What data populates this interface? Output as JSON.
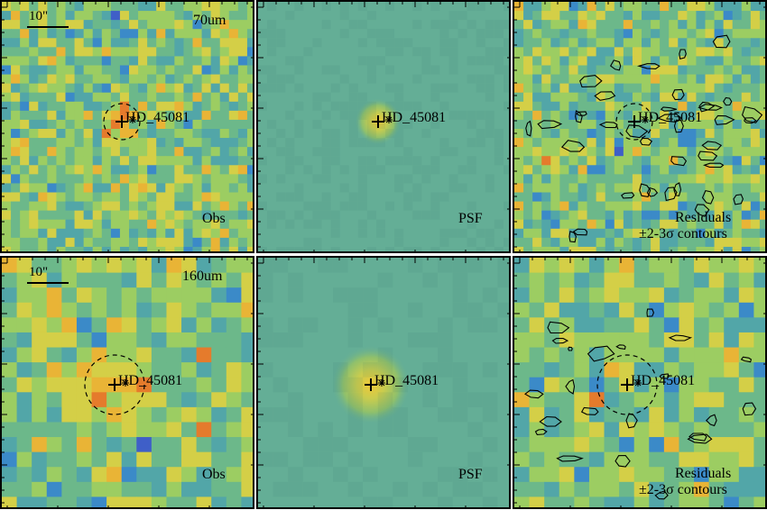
{
  "target_name": "HD_45081",
  "scalebar_label": "10\"",
  "rows": [
    {
      "band": "70um",
      "obs_label": "Obs",
      "psf_label": "PSF",
      "residual_label_1": "Residuals",
      "residual_label_2": "±2-3σ contours"
    },
    {
      "band": "160um",
      "obs_label": "Obs",
      "psf_label": "PSF",
      "residual_label_1": "Residuals",
      "residual_label_2": "±2-3σ contours"
    }
  ],
  "colors": {
    "psf_background": "#64ae96",
    "psf_core": "#f0c838",
    "contour": "#000000",
    "palette": [
      "#3a2d8c",
      "#3f5fc8",
      "#3b8ac8",
      "#52a6a8",
      "#6cb88a",
      "#9ccd62",
      "#d4cf47",
      "#e9b436",
      "#e57b2c",
      "#d8382b"
    ]
  }
}
